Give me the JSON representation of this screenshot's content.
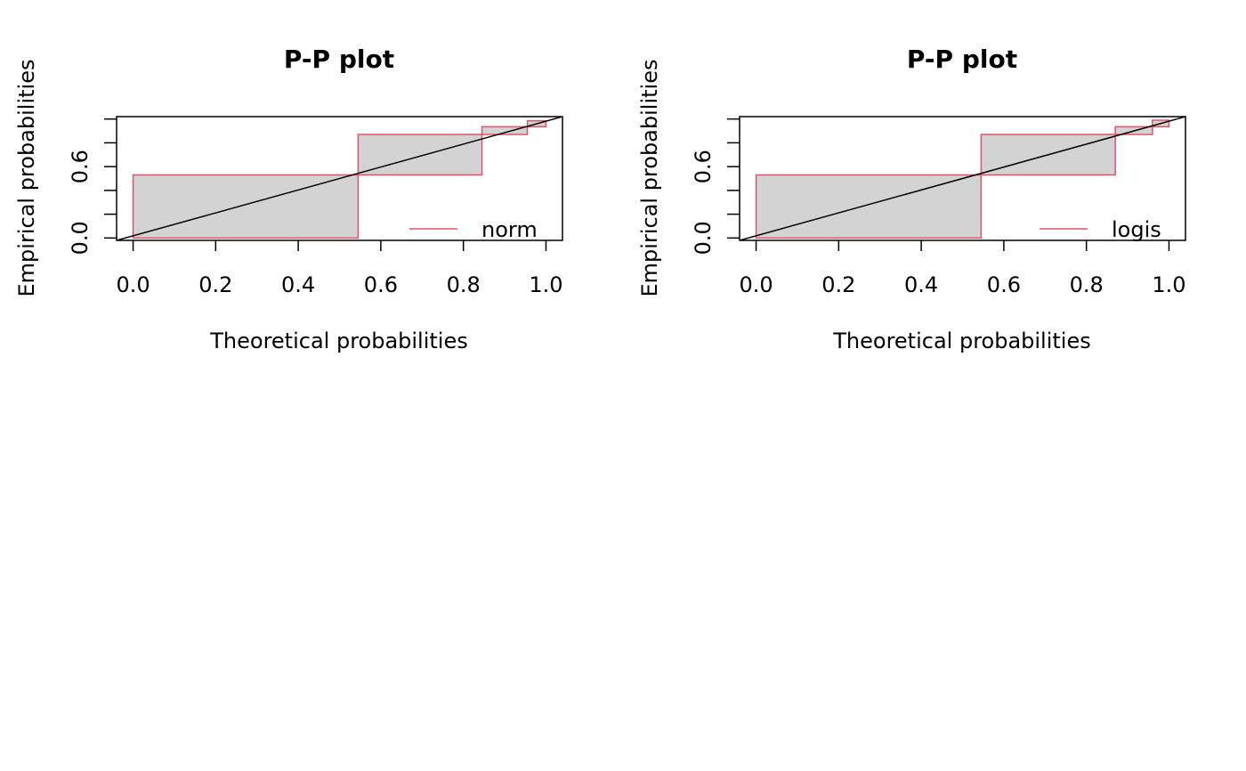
{
  "chart_data": [
    {
      "type": "area",
      "title": "P-P plot",
      "xlabel": "Theoretical probabilities",
      "ylabel": "Empirical probabilities",
      "xlim": [
        -0.04,
        1.04
      ],
      "ylim": [
        -0.02,
        1.02
      ],
      "x_ticks": [
        "0.0",
        "0.2",
        "0.4",
        "0.6",
        "0.8",
        "1.0"
      ],
      "y_ticks": [
        "0.0",
        "0.6"
      ],
      "y_tick_values": [
        0.0,
        0.2,
        0.4,
        0.6,
        0.8,
        1.0
      ],
      "legend": {
        "placement": "bottom-right",
        "entries": [
          "norm"
        ]
      },
      "series": [
        {
          "name": "norm",
          "color": "#DF536B",
          "steps": [
            {
              "x0": 0.0,
              "x1": 0.545,
              "empirical": 0.0,
              "theoretical": 0.53
            },
            {
              "x0": 0.545,
              "x1": 0.845,
              "empirical": 0.53,
              "theoretical": 0.87
            },
            {
              "x0": 0.845,
              "x1": 0.955,
              "empirical": 0.87,
              "theoretical": 0.935
            },
            {
              "x0": 0.955,
              "x1": 1.0,
              "empirical": 0.935,
              "theoretical": 0.985
            }
          ]
        }
      ],
      "reference_line": {
        "from": [
          -0.04,
          -0.02
        ],
        "to": [
          1.04,
          1.02
        ],
        "color": "#000000"
      },
      "fill_color": "#D3D3D3"
    },
    {
      "type": "area",
      "title": "P-P plot",
      "xlabel": "Theoretical probabilities",
      "ylabel": "Empirical probabilities",
      "xlim": [
        -0.04,
        1.04
      ],
      "ylim": [
        -0.02,
        1.02
      ],
      "x_ticks": [
        "0.0",
        "0.2",
        "0.4",
        "0.6",
        "0.8",
        "1.0"
      ],
      "y_ticks": [
        "0.0",
        "0.6"
      ],
      "y_tick_values": [
        0.0,
        0.2,
        0.4,
        0.6,
        0.8,
        1.0
      ],
      "legend": {
        "placement": "bottom-right",
        "entries": [
          "logis"
        ]
      },
      "series": [
        {
          "name": "logis",
          "color": "#DF536B",
          "steps": [
            {
              "x0": 0.0,
              "x1": 0.545,
              "empirical": 0.0,
              "theoretical": 0.53
            },
            {
              "x0": 0.545,
              "x1": 0.87,
              "empirical": 0.53,
              "theoretical": 0.87
            },
            {
              "x0": 0.87,
              "x1": 0.96,
              "empirical": 0.87,
              "theoretical": 0.935
            },
            {
              "x0": 0.96,
              "x1": 1.0,
              "empirical": 0.935,
              "theoretical": 0.99
            }
          ]
        }
      ],
      "reference_line": {
        "from": [
          -0.04,
          -0.02
        ],
        "to": [
          1.04,
          1.02
        ],
        "color": "#000000"
      },
      "fill_color": "#D3D3D3"
    }
  ]
}
